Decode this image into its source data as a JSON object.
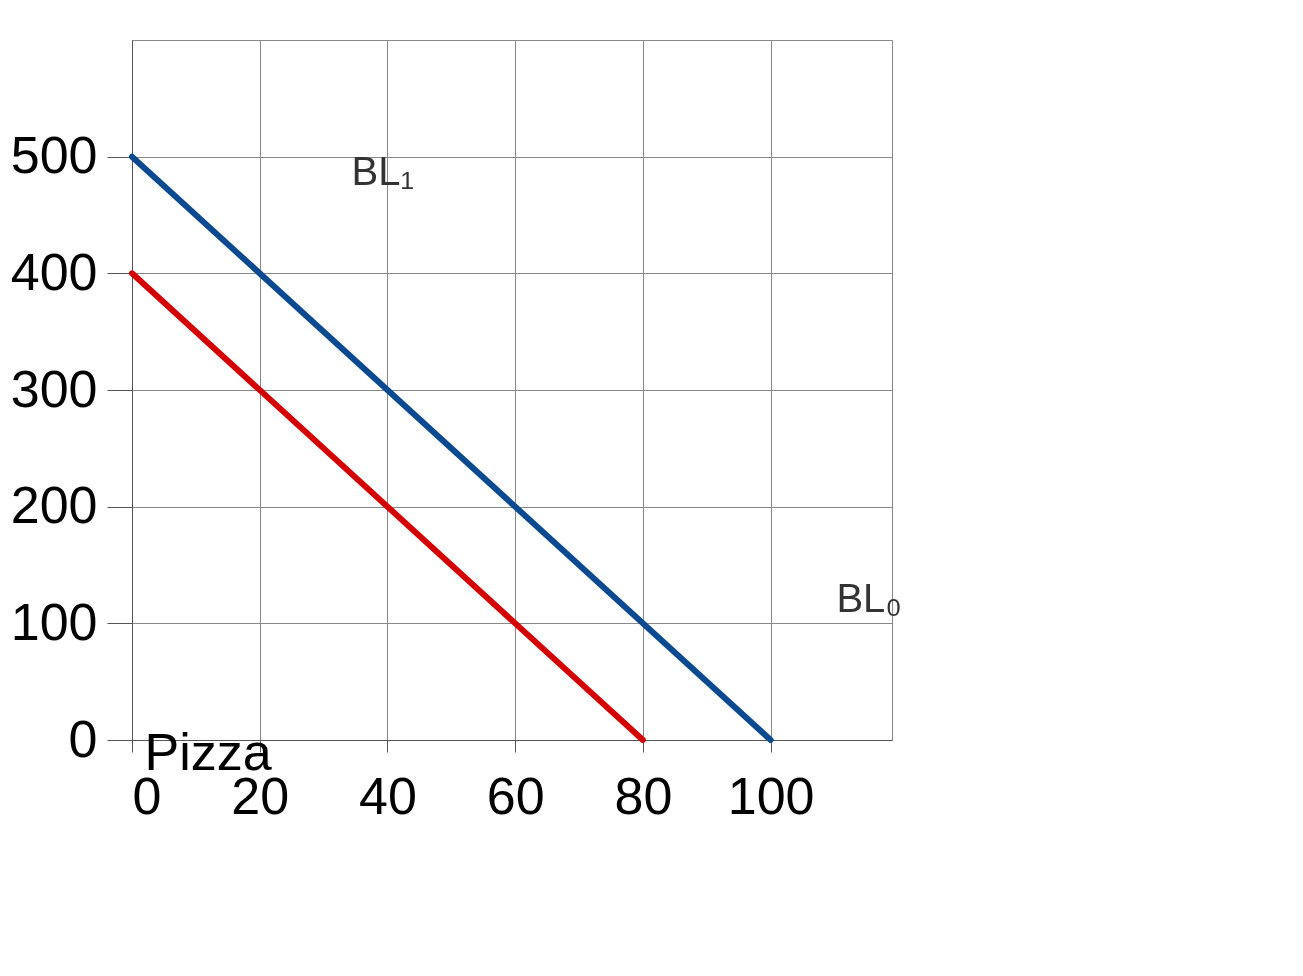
{
  "chart_data": {
    "type": "line",
    "xlabel": "Pizza",
    "x": [
      0,
      100
    ],
    "series": [
      {
        "color": "#0b4a91",
        "values": [
          500,
          0
        ]
      },
      {
        "color": "#d40000",
        "x": [
          0,
          80
        ],
        "values": [
          400,
          0
        ]
      }
    ],
    "xlim": [
      0,
      119
    ],
    "ylim": [
      0,
      600
    ],
    "xticks": [
      0,
      20,
      40,
      60,
      80,
      100
    ],
    "yticks": [
      0,
      100,
      200,
      300,
      400,
      500
    ],
    "grid": true,
    "marker": "none",
    "line_style": "solid",
    "annotations": [
      "BL₁",
      "BL₀"
    ]
  }
}
